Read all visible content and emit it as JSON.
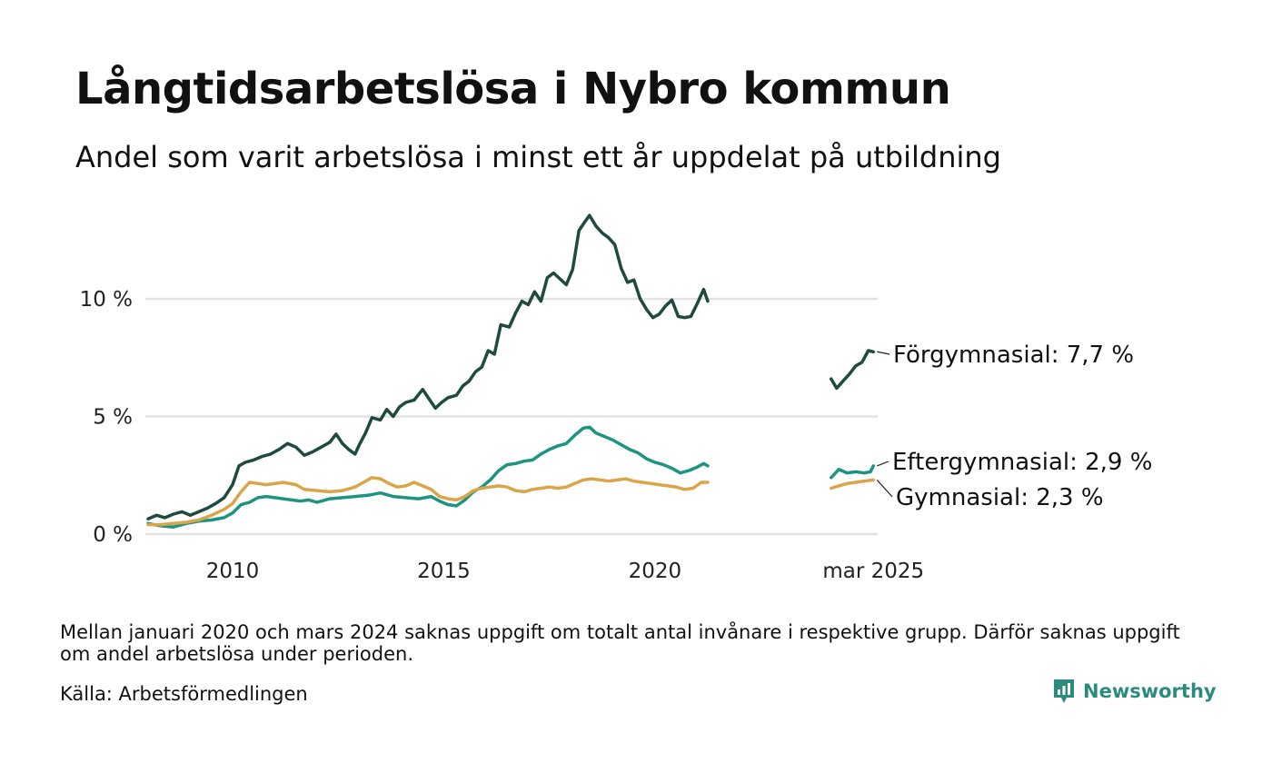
{
  "title": "Långtidsarbetslösa i Nybro kommun",
  "subtitle": "Andel som varit arbetslösa i minst ett år uppdelat på utbildning",
  "note": "Mellan januari 2020 och mars 2024 saknas uppgift om totalt antal invånare i respektive grupp. Därför saknas uppgift om andel arbetslösa under perioden.",
  "source": "Källa: Arbetsförmedlingen",
  "brand": {
    "name": "Newsworthy",
    "icon": "newsworthy-logo-icon",
    "color": "#2b8c7d"
  },
  "chart_data": {
    "type": "line",
    "x_unit": "year (decimal)",
    "y_unit": "%",
    "ylim": [
      0,
      13.7
    ],
    "xlim": [
      2008.0,
      2025.25
    ],
    "grid": true,
    "y_ticks": [
      {
        "value": 0,
        "label": "0 %"
      },
      {
        "value": 5,
        "label": "5 %"
      },
      {
        "value": 10,
        "label": "10 %"
      }
    ],
    "x_ticks": [
      {
        "value": 2010,
        "label": "2010"
      },
      {
        "value": 2015,
        "label": "2015"
      },
      {
        "value": 2020,
        "label": "2020"
      },
      {
        "value": 2025.17,
        "label": "mar 2025"
      }
    ],
    "end_labels": [
      {
        "series": "forgymnasial",
        "text": "Förgymnasial: 7,7 %"
      },
      {
        "series": "eftergymnasial",
        "text": "Eftergymnasial: 2,9 %"
      },
      {
        "series": "gymnasial",
        "text": "Gymnasial: 2,3 %"
      }
    ],
    "series": [
      {
        "key": "forgymnasial",
        "color": "#1f4a40",
        "segments": [
          [
            [
              2008.0,
              0.65
            ],
            [
              2008.2,
              0.8
            ],
            [
              2008.4,
              0.7
            ],
            [
              2008.6,
              0.85
            ],
            [
              2008.8,
              0.95
            ],
            [
              2009.0,
              0.8
            ],
            [
              2009.2,
              0.95
            ],
            [
              2009.4,
              1.1
            ],
            [
              2009.6,
              1.3
            ],
            [
              2009.8,
              1.55
            ],
            [
              2010.0,
              2.1
            ],
            [
              2010.15,
              2.9
            ],
            [
              2010.3,
              3.05
            ],
            [
              2010.5,
              3.15
            ],
            [
              2010.7,
              3.3
            ],
            [
              2010.9,
              3.4
            ],
            [
              2011.1,
              3.6
            ],
            [
              2011.3,
              3.85
            ],
            [
              2011.5,
              3.7
            ],
            [
              2011.7,
              3.35
            ],
            [
              2011.9,
              3.5
            ],
            [
              2012.1,
              3.7
            ],
            [
              2012.3,
              3.9
            ],
            [
              2012.45,
              4.25
            ],
            [
              2012.6,
              3.85
            ],
            [
              2012.75,
              3.6
            ],
            [
              2012.9,
              3.4
            ],
            [
              2013.0,
              3.8
            ],
            [
              2013.15,
              4.3
            ],
            [
              2013.3,
              4.95
            ],
            [
              2013.5,
              4.85
            ],
            [
              2013.65,
              5.3
            ],
            [
              2013.8,
              5.0
            ],
            [
              2013.95,
              5.4
            ],
            [
              2014.1,
              5.6
            ],
            [
              2014.3,
              5.7
            ],
            [
              2014.5,
              6.15
            ],
            [
              2014.65,
              5.75
            ],
            [
              2014.8,
              5.35
            ],
            [
              2014.95,
              5.6
            ],
            [
              2015.1,
              5.8
            ],
            [
              2015.3,
              5.9
            ],
            [
              2015.45,
              6.3
            ],
            [
              2015.6,
              6.5
            ],
            [
              2015.75,
              6.9
            ],
            [
              2015.9,
              7.1
            ],
            [
              2016.05,
              7.8
            ],
            [
              2016.2,
              7.65
            ],
            [
              2016.35,
              8.9
            ],
            [
              2016.55,
              8.8
            ],
            [
              2016.7,
              9.4
            ],
            [
              2016.85,
              9.9
            ],
            [
              2017.0,
              9.75
            ],
            [
              2017.15,
              10.3
            ],
            [
              2017.3,
              9.9
            ],
            [
              2017.45,
              10.9
            ],
            [
              2017.6,
              11.1
            ],
            [
              2017.75,
              10.85
            ],
            [
              2017.9,
              10.6
            ],
            [
              2018.05,
              11.25
            ],
            [
              2018.2,
              12.9
            ],
            [
              2018.35,
              13.3
            ],
            [
              2018.45,
              13.55
            ],
            [
              2018.6,
              13.1
            ],
            [
              2018.75,
              12.8
            ],
            [
              2018.9,
              12.6
            ],
            [
              2019.05,
              12.3
            ],
            [
              2019.2,
              11.3
            ],
            [
              2019.35,
              10.7
            ],
            [
              2019.5,
              10.8
            ],
            [
              2019.65,
              10.0
            ],
            [
              2019.8,
              9.55
            ],
            [
              2019.95,
              9.2
            ],
            [
              2020.1,
              9.35
            ],
            [
              2020.25,
              9.7
            ],
            [
              2020.4,
              9.95
            ],
            [
              2020.55,
              9.25
            ],
            [
              2020.7,
              9.2
            ],
            [
              2020.85,
              9.25
            ],
            [
              2021.0,
              9.8
            ],
            [
              2021.15,
              10.4
            ],
            [
              2021.25,
              9.9
            ]
          ],
          [
            [
              2024.17,
              6.6
            ],
            [
              2024.3,
              6.2
            ],
            [
              2024.45,
              6.5
            ],
            [
              2024.6,
              6.8
            ],
            [
              2024.75,
              7.15
            ],
            [
              2024.9,
              7.3
            ],
            [
              2025.05,
              7.8
            ],
            [
              2025.17,
              7.75
            ]
          ]
        ]
      },
      {
        "key": "eftergymnasial",
        "color": "#1d9482",
        "segments": [
          [
            [
              2008.0,
              0.45
            ],
            [
              2008.3,
              0.35
            ],
            [
              2008.6,
              0.3
            ],
            [
              2008.9,
              0.45
            ],
            [
              2009.2,
              0.55
            ],
            [
              2009.5,
              0.6
            ],
            [
              2009.8,
              0.7
            ],
            [
              2010.0,
              0.9
            ],
            [
              2010.2,
              1.25
            ],
            [
              2010.4,
              1.35
            ],
            [
              2010.6,
              1.55
            ],
            [
              2010.8,
              1.6
            ],
            [
              2011.0,
              1.55
            ],
            [
              2011.2,
              1.5
            ],
            [
              2011.4,
              1.45
            ],
            [
              2011.6,
              1.4
            ],
            [
              2011.8,
              1.45
            ],
            [
              2012.0,
              1.35
            ],
            [
              2012.3,
              1.5
            ],
            [
              2012.6,
              1.55
            ],
            [
              2012.9,
              1.6
            ],
            [
              2013.2,
              1.65
            ],
            [
              2013.5,
              1.75
            ],
            [
              2013.8,
              1.6
            ],
            [
              2014.1,
              1.55
            ],
            [
              2014.4,
              1.5
            ],
            [
              2014.7,
              1.6
            ],
            [
              2014.9,
              1.4
            ],
            [
              2015.1,
              1.25
            ],
            [
              2015.3,
              1.2
            ],
            [
              2015.5,
              1.45
            ],
            [
              2015.7,
              1.8
            ],
            [
              2015.9,
              2.0
            ],
            [
              2016.1,
              2.3
            ],
            [
              2016.3,
              2.7
            ],
            [
              2016.5,
              2.95
            ],
            [
              2016.7,
              3.0
            ],
            [
              2016.9,
              3.1
            ],
            [
              2017.1,
              3.15
            ],
            [
              2017.3,
              3.4
            ],
            [
              2017.5,
              3.6
            ],
            [
              2017.7,
              3.75
            ],
            [
              2017.9,
              3.85
            ],
            [
              2018.1,
              4.2
            ],
            [
              2018.3,
              4.5
            ],
            [
              2018.45,
              4.55
            ],
            [
              2018.6,
              4.3
            ],
            [
              2018.8,
              4.15
            ],
            [
              2019.0,
              4.0
            ],
            [
              2019.2,
              3.8
            ],
            [
              2019.4,
              3.6
            ],
            [
              2019.6,
              3.45
            ],
            [
              2019.8,
              3.2
            ],
            [
              2020.0,
              3.05
            ],
            [
              2020.2,
              2.95
            ],
            [
              2020.4,
              2.8
            ],
            [
              2020.6,
              2.6
            ],
            [
              2020.8,
              2.7
            ],
            [
              2021.0,
              2.85
            ],
            [
              2021.15,
              3.0
            ],
            [
              2021.25,
              2.9
            ]
          ],
          [
            [
              2024.17,
              2.4
            ],
            [
              2024.35,
              2.75
            ],
            [
              2024.55,
              2.6
            ],
            [
              2024.75,
              2.65
            ],
            [
              2024.95,
              2.6
            ],
            [
              2025.1,
              2.65
            ],
            [
              2025.17,
              2.9
            ]
          ]
        ]
      },
      {
        "key": "gymnasial",
        "color": "#d9a548",
        "segments": [
          [
            [
              2008.0,
              0.4
            ],
            [
              2008.3,
              0.4
            ],
            [
              2008.6,
              0.45
            ],
            [
              2008.9,
              0.5
            ],
            [
              2009.2,
              0.6
            ],
            [
              2009.5,
              0.8
            ],
            [
              2009.8,
              1.05
            ],
            [
              2010.0,
              1.3
            ],
            [
              2010.2,
              1.8
            ],
            [
              2010.4,
              2.2
            ],
            [
              2010.6,
              2.15
            ],
            [
              2010.8,
              2.1
            ],
            [
              2011.0,
              2.15
            ],
            [
              2011.2,
              2.2
            ],
            [
              2011.5,
              2.1
            ],
            [
              2011.7,
              1.9
            ],
            [
              2012.0,
              1.85
            ],
            [
              2012.3,
              1.8
            ],
            [
              2012.6,
              1.85
            ],
            [
              2012.9,
              2.0
            ],
            [
              2013.1,
              2.2
            ],
            [
              2013.3,
              2.4
            ],
            [
              2013.5,
              2.35
            ],
            [
              2013.7,
              2.15
            ],
            [
              2013.9,
              2.0
            ],
            [
              2014.1,
              2.05
            ],
            [
              2014.3,
              2.2
            ],
            [
              2014.5,
              2.05
            ],
            [
              2014.7,
              1.9
            ],
            [
              2014.9,
              1.6
            ],
            [
              2015.1,
              1.5
            ],
            [
              2015.3,
              1.45
            ],
            [
              2015.5,
              1.6
            ],
            [
              2015.7,
              1.85
            ],
            [
              2015.9,
              1.95
            ],
            [
              2016.1,
              2.0
            ],
            [
              2016.3,
              2.05
            ],
            [
              2016.5,
              2.0
            ],
            [
              2016.7,
              1.85
            ],
            [
              2016.9,
              1.8
            ],
            [
              2017.1,
              1.9
            ],
            [
              2017.3,
              1.95
            ],
            [
              2017.5,
              2.0
            ],
            [
              2017.7,
              1.95
            ],
            [
              2017.9,
              2.0
            ],
            [
              2018.1,
              2.15
            ],
            [
              2018.3,
              2.3
            ],
            [
              2018.5,
              2.35
            ],
            [
              2018.7,
              2.3
            ],
            [
              2018.9,
              2.25
            ],
            [
              2019.1,
              2.3
            ],
            [
              2019.3,
              2.35
            ],
            [
              2019.5,
              2.25
            ],
            [
              2019.7,
              2.2
            ],
            [
              2019.9,
              2.15
            ],
            [
              2020.1,
              2.1
            ],
            [
              2020.3,
              2.05
            ],
            [
              2020.5,
              2.0
            ],
            [
              2020.7,
              1.9
            ],
            [
              2020.9,
              1.95
            ],
            [
              2021.1,
              2.2
            ],
            [
              2021.25,
              2.2
            ]
          ],
          [
            [
              2024.17,
              1.95
            ],
            [
              2024.35,
              2.05
            ],
            [
              2024.55,
              2.15
            ],
            [
              2024.75,
              2.2
            ],
            [
              2024.95,
              2.25
            ],
            [
              2025.17,
              2.3
            ]
          ]
        ]
      }
    ]
  }
}
